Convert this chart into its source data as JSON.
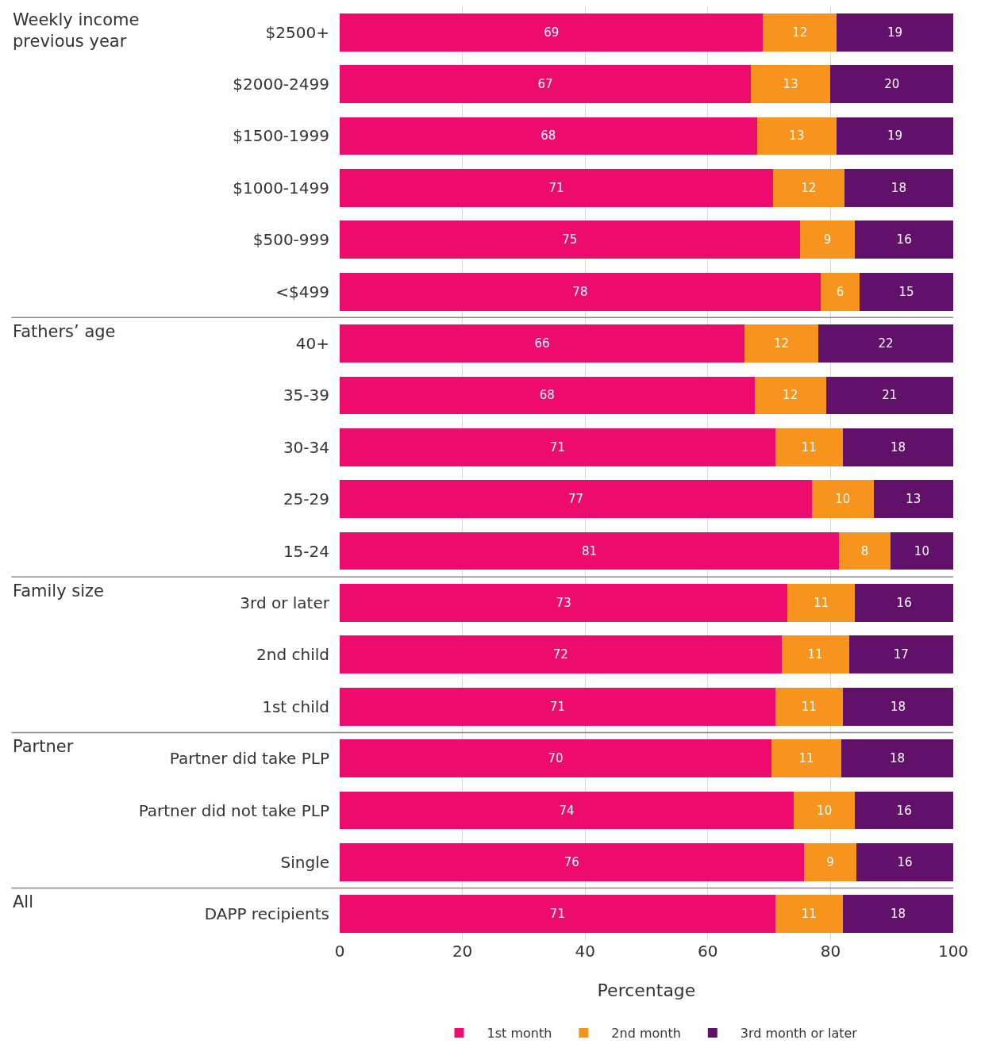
{
  "chart_data": {
    "type": "bar",
    "orientation": "horizontal",
    "stacked": true,
    "categories": [
      "$2500+",
      "$2000-2499",
      "$1500-1999",
      "$1000-1499",
      "$500-999",
      "<$499",
      "40+",
      "35-39",
      "30-34",
      "25-29",
      "15-24",
      "3rd or later",
      "2nd child",
      "1st child",
      "Partner did take PLP",
      "Partner did not take PLP",
      "Single",
      "DAPP recipients"
    ],
    "series": [
      {
        "name": "1st month",
        "color": "#ed0c6e",
        "values": [
          69,
          67,
          68,
          70.625,
          75,
          78.375,
          66,
          67.625,
          71,
          77,
          81.375,
          73,
          72,
          71,
          70.375,
          74,
          75.625,
          71
        ],
        "value_labels": [
          "69",
          "67",
          "68",
          "71",
          "75",
          "78",
          "66",
          "68",
          "71",
          "77",
          "81",
          "73",
          "72",
          "71",
          "70",
          "74",
          "76",
          "71"
        ]
      },
      {
        "name": "2nd month",
        "color": "#f7941d",
        "values": [
          12,
          13,
          13,
          11.625,
          9,
          6.375,
          12,
          11.625,
          11,
          10,
          8.375,
          11,
          11,
          11,
          11.375,
          10,
          8.625,
          11
        ],
        "value_labels": [
          "12",
          "13",
          "13",
          "12",
          "9",
          "6",
          "12",
          "12",
          "11",
          "10",
          "8",
          "11",
          "11",
          "11",
          "11",
          "10",
          "9",
          "11"
        ]
      },
      {
        "name": "3rd month or later",
        "color": "#62116b",
        "values": [
          19,
          20,
          19,
          17.75,
          16,
          15.25,
          22,
          20.75,
          18,
          13,
          10.25,
          16,
          17,
          18,
          18.25,
          16,
          15.75,
          18
        ],
        "value_labels": [
          "19",
          "20",
          "19",
          "18",
          "16",
          "15",
          "22",
          "21",
          "18",
          "13",
          "10",
          "16",
          "17",
          "18",
          "18",
          "16",
          "16",
          "18"
        ]
      }
    ],
    "xlabel": "Percentage",
    "xlim": [
      0,
      100
    ],
    "xticks": [
      0,
      20,
      40,
      60,
      80,
      100
    ],
    "grid": "x",
    "legend": "bottom",
    "annotations": [
      "Weekly income previous year",
      "Fathers’ age",
      "Family size",
      "Partner",
      "All"
    ]
  }
}
